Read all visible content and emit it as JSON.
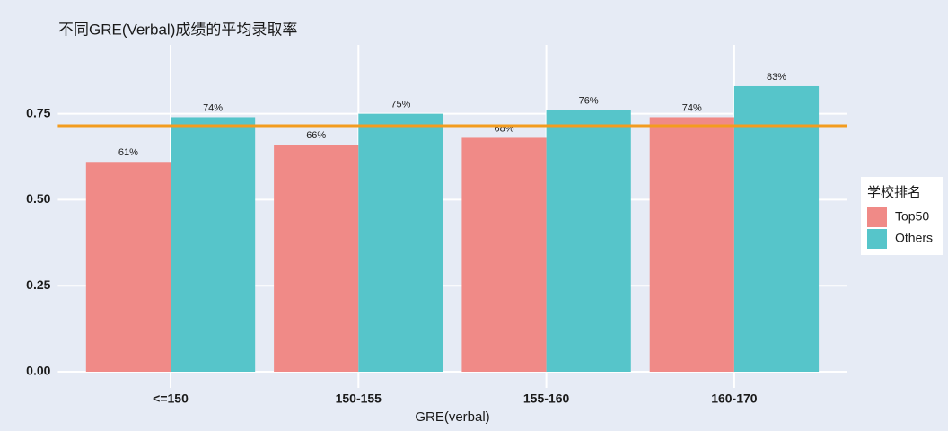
{
  "chart_data": {
    "type": "bar",
    "title": "不同GRE(Verbal)成绩的平均录取率",
    "x_label": "GRE(verbal)",
    "categories": [
      "<=150",
      "150-155",
      "155-160",
      "160-170"
    ],
    "series": [
      {
        "name": "Top50",
        "color": "#f08a87",
        "values": [
          0.61,
          0.66,
          0.68,
          0.74
        ],
        "value_labels": [
          "61%",
          "66%",
          "68%",
          "74%"
        ]
      },
      {
        "name": "Others",
        "color": "#56c5ca",
        "values": [
          0.74,
          0.75,
          0.76,
          0.83
        ],
        "value_labels": [
          "74%",
          "75%",
          "76%",
          "83%"
        ]
      }
    ],
    "hline": 0.715,
    "hline_color": "#f39c1f",
    "legend_title": "学校排名",
    "ylim": [
      -0.047,
      0.95
    ],
    "yticks": [
      {
        "value": 0,
        "label": "0.00"
      },
      0.25,
      {
        "value": 0.5,
        "label": "0.50"
      },
      0.75
    ],
    "grid": true
  }
}
